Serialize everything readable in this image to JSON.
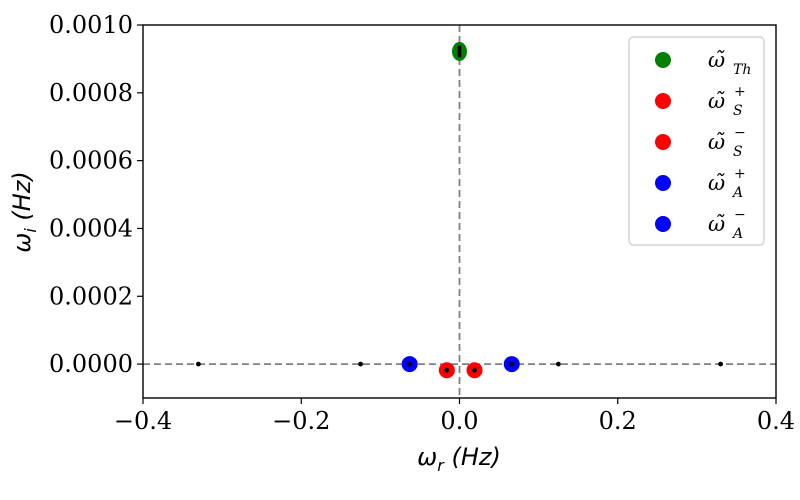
{
  "chart_data": {
    "type": "scatter",
    "title": "",
    "xlabel": "ω_r (Hz)",
    "ylabel": "ω_i (Hz)",
    "xlabel_parts": {
      "sym": "ω",
      "sub": "r",
      "unit": "(Hz)"
    },
    "ylabel_parts": {
      "sym": "ω",
      "sub": "i",
      "unit": "(Hz)"
    },
    "xlim": [
      -0.4,
      0.4
    ],
    "ylim": [
      -0.0001,
      0.001
    ],
    "xticks": [
      -0.4,
      -0.2,
      0.0,
      0.2,
      0.4
    ],
    "xtick_labels": [
      "−0.4",
      "−0.2",
      "0.0",
      "0.2",
      "0.4"
    ],
    "yticks": [
      0.0,
      0.0002,
      0.0004,
      0.0006,
      0.0008,
      0.001
    ],
    "ytick_labels": [
      "0.0000",
      "0.0002",
      "0.0004",
      "0.0006",
      "0.0008",
      "0.0010"
    ],
    "grid": false,
    "legend_position": "top-right",
    "reference_lines": {
      "horizontal_y": 0.0,
      "vertical_x": 0.0,
      "style": "dashed",
      "color": "#808080"
    },
    "series": [
      {
        "name": "ω̃_Th",
        "legend": {
          "sym": "ω̃",
          "sub": "Th",
          "sup": ""
        },
        "color": "#008000",
        "points": [
          {
            "x": 0.0,
            "y": 0.000922
          }
        ]
      },
      {
        "name": "ω̃_S^+",
        "legend": {
          "sym": "ω̃",
          "sub": "S",
          "sup": "+"
        },
        "color": "#ff0000",
        "points": [
          {
            "x": 0.019,
            "y": -1.8e-05
          }
        ]
      },
      {
        "name": "ω̃_S^−",
        "legend": {
          "sym": "ω̃",
          "sub": "S",
          "sup": "−"
        },
        "color": "#ff0000",
        "points": [
          {
            "x": -0.016,
            "y": -1.8e-05
          }
        ]
      },
      {
        "name": "ω̃_A^+",
        "legend": {
          "sym": "ω̃",
          "sub": "A",
          "sup": "+"
        },
        "color": "#0000ff",
        "points": [
          {
            "x": 0.066,
            "y": 0.0
          }
        ]
      },
      {
        "name": "ω̃_A^−",
        "legend": {
          "sym": "ω̃",
          "sub": "A",
          "sup": "−"
        },
        "color": "#0000ff",
        "points": [
          {
            "x": -0.063,
            "y": 0.0
          }
        ]
      }
    ],
    "small_black_points": [
      {
        "x": -0.33,
        "y": 0.0
      },
      {
        "x": -0.125,
        "y": 0.0
      },
      {
        "x": -0.063,
        "y": 0.0
      },
      {
        "x": -0.016,
        "y": -1.8e-05
      },
      {
        "x": 0.0,
        "y": 0.000922
      },
      {
        "x": 0.019,
        "y": -1.8e-05
      },
      {
        "x": 0.066,
        "y": 0.0
      },
      {
        "x": 0.125,
        "y": 0.0
      },
      {
        "x": 0.33,
        "y": 0.0
      }
    ]
  }
}
